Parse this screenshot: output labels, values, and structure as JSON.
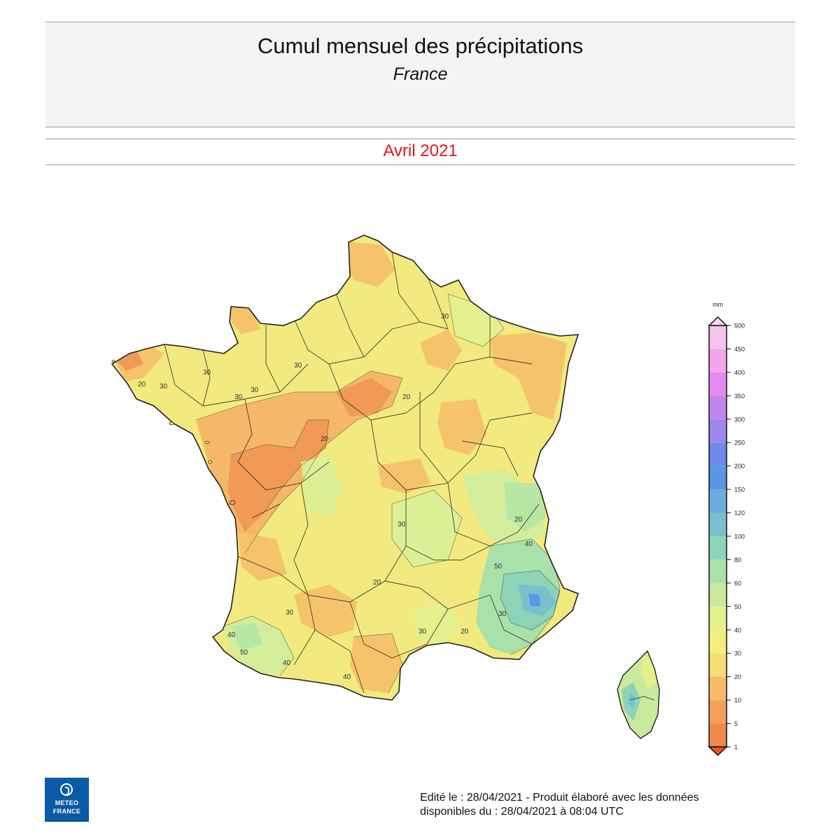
{
  "header": {
    "title": "Cumul mensuel des précipitations",
    "subtitle": "France"
  },
  "period": "Avril 2021",
  "legend": {
    "unit": "mm",
    "levels": [
      "1",
      "5",
      "10",
      "20",
      "30",
      "40",
      "50",
      "60",
      "80",
      "100",
      "120",
      "150",
      "200",
      "250",
      "300",
      "350",
      "400",
      "450",
      "500"
    ],
    "colors": [
      "#f08a4b",
      "#f3a15a",
      "#f6bc68",
      "#f6dd74",
      "#f2ef7f",
      "#e3f08c",
      "#c7ea9c",
      "#a8e1aa",
      "#8dd3b8",
      "#78c0cc",
      "#6aaedd",
      "#5a96e6",
      "#7088ea",
      "#9a88ec",
      "#c285ee",
      "#e58bef",
      "#f0a5ec",
      "#f5c4ec"
    ]
  },
  "map": {
    "contour_labels": [
      "30",
      "30",
      "30",
      "20",
      "30",
      "30",
      "20",
      "30",
      "40",
      "50",
      "30",
      "20",
      "20",
      "40",
      "30",
      "40",
      "20",
      "40",
      "30",
      "30",
      "20",
      "50"
    ]
  },
  "logo": {
    "line1": "METEO",
    "line2": "FRANCE"
  },
  "footer": {
    "line1": "Edité le : 28/04/2021 - Produit élaboré avec les données",
    "line2": "disponibles du : 28/04/2021 à 08:04 UTC"
  }
}
